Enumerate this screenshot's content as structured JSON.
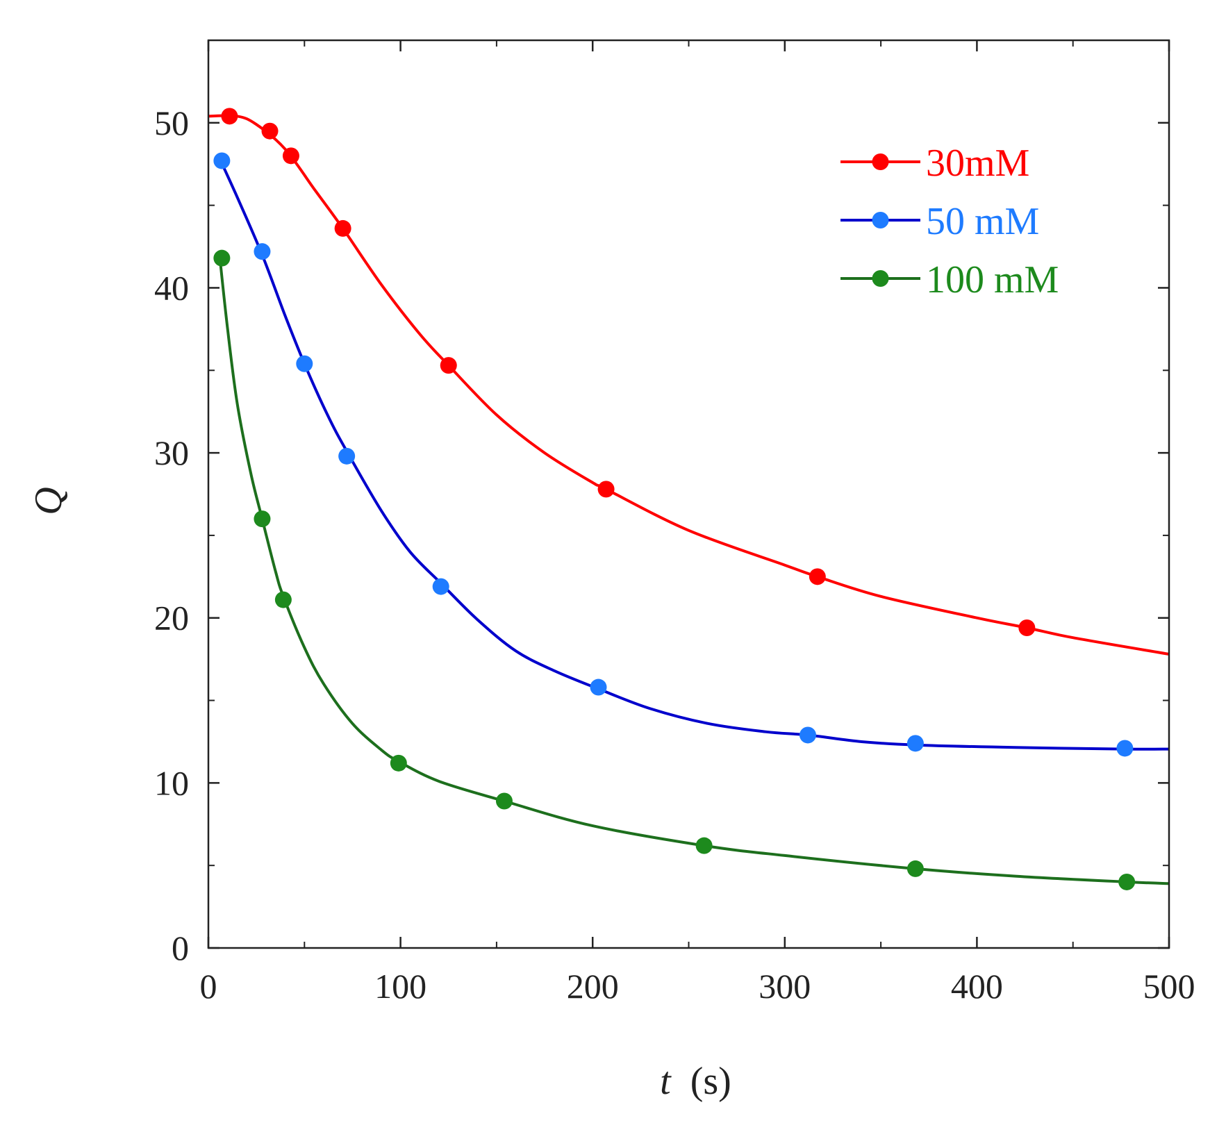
{
  "chart_data": {
    "type": "scatter",
    "title": "",
    "xlabel": {
      "var": "t",
      "unit": "(s)"
    },
    "ylabel": "Q",
    "xlim": [
      0,
      500
    ],
    "ylim": [
      0,
      55
    ],
    "xticks": [
      0,
      100,
      200,
      300,
      400,
      500
    ],
    "yticks": [
      0,
      10,
      20,
      30,
      40,
      50
    ],
    "grid": false,
    "legend_position": "top-right",
    "series": [
      {
        "name": "30mM",
        "color": "#ff0000",
        "marker_color": "#ff0000",
        "points": [
          [
            11,
            50.4
          ],
          [
            32,
            49.5
          ],
          [
            43,
            48
          ],
          [
            70,
            43.6
          ],
          [
            125,
            35.3
          ],
          [
            207,
            27.8
          ],
          [
            317,
            22.5
          ],
          [
            426,
            19.4
          ]
        ],
        "fit": [
          [
            0,
            50.4
          ],
          [
            15,
            50.4
          ],
          [
            25,
            49.9
          ],
          [
            40,
            48.4
          ],
          [
            55,
            46
          ],
          [
            70,
            43.6
          ],
          [
            90,
            40.2
          ],
          [
            110,
            37.2
          ],
          [
            125,
            35.3
          ],
          [
            150,
            32.3
          ],
          [
            175,
            30
          ],
          [
            200,
            28.2
          ],
          [
            207,
            27.8
          ],
          [
            250,
            25.3
          ],
          [
            300,
            23.2
          ],
          [
            317,
            22.5
          ],
          [
            350,
            21.3
          ],
          [
            400,
            20
          ],
          [
            426,
            19.4
          ],
          [
            450,
            18.8
          ],
          [
            500,
            17.8
          ]
        ]
      },
      {
        "name": "50 mM",
        "color": "#0000cc",
        "marker_color": "#1e7bff",
        "points": [
          [
            7,
            47.7
          ],
          [
            28,
            42.2
          ],
          [
            50,
            35.4
          ],
          [
            72,
            29.8
          ],
          [
            121,
            21.9
          ],
          [
            203,
            15.8
          ],
          [
            312,
            12.9
          ],
          [
            368,
            12.4
          ],
          [
            477,
            12.1
          ]
        ],
        "fit": [
          [
            6,
            47.8
          ],
          [
            15,
            45.5
          ],
          [
            28,
            42
          ],
          [
            40,
            38.3
          ],
          [
            50,
            35.4
          ],
          [
            62,
            32.3
          ],
          [
            72,
            30.1
          ],
          [
            90,
            26.5
          ],
          [
            105,
            24
          ],
          [
            121,
            22.1
          ],
          [
            140,
            19.9
          ],
          [
            160,
            18
          ],
          [
            180,
            16.8
          ],
          [
            203,
            15.7
          ],
          [
            230,
            14.5
          ],
          [
            260,
            13.6
          ],
          [
            290,
            13.1
          ],
          [
            312,
            12.9
          ],
          [
            340,
            12.5
          ],
          [
            368,
            12.3
          ],
          [
            420,
            12.15
          ],
          [
            477,
            12.05
          ],
          [
            500,
            12.05
          ]
        ]
      },
      {
        "name": "100 mM",
        "color": "#1d6f1d",
        "marker_color": "#1d8a1d",
        "points": [
          [
            7,
            41.8
          ],
          [
            28,
            26
          ],
          [
            39,
            21.1
          ],
          [
            99,
            11.2
          ],
          [
            154,
            8.9
          ],
          [
            258,
            6.2
          ],
          [
            368,
            4.8
          ],
          [
            478,
            4
          ]
        ],
        "fit": [
          [
            6,
            41.8
          ],
          [
            10,
            37.5
          ],
          [
            15,
            33
          ],
          [
            22,
            28.8
          ],
          [
            28,
            26
          ],
          [
            35,
            22.8
          ],
          [
            39,
            21.3
          ],
          [
            50,
            18.2
          ],
          [
            60,
            16
          ],
          [
            75,
            13.6
          ],
          [
            90,
            12
          ],
          [
            99,
            11.3
          ],
          [
            120,
            10.1
          ],
          [
            154,
            8.9
          ],
          [
            200,
            7.4
          ],
          [
            258,
            6.2
          ],
          [
            300,
            5.6
          ],
          [
            368,
            4.8
          ],
          [
            420,
            4.35
          ],
          [
            478,
            4
          ],
          [
            500,
            3.9
          ]
        ]
      }
    ]
  }
}
